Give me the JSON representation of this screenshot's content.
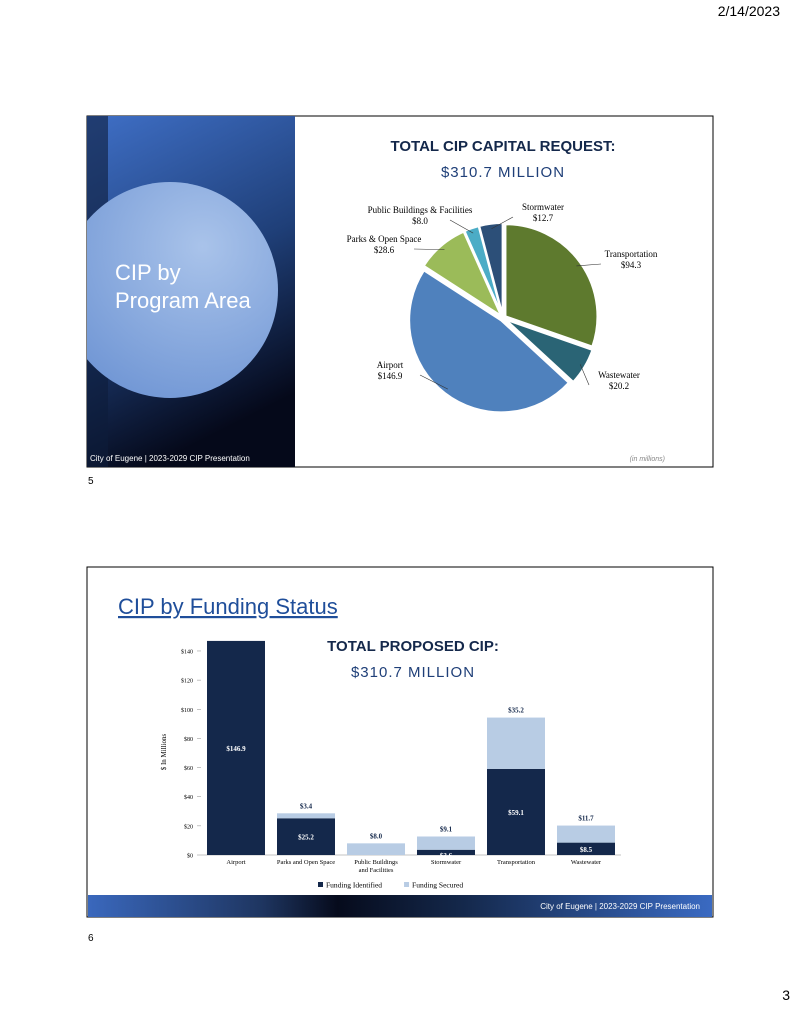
{
  "header": {
    "date": "2/14/2023"
  },
  "footer": {
    "page_number": "3"
  },
  "slides": [
    {
      "number": "5",
      "title_lines": [
        "CIP by",
        "Program Area"
      ],
      "footer": "City of Eugene  |  2023-2029 CIP Presentation"
    },
    {
      "number": "6",
      "title": "CIP by Funding Status",
      "footer": "City of Eugene  |  2023-2029 CIP Presentation"
    }
  ],
  "chart_data": [
    {
      "type": "pie",
      "title": "TOTAL CIP CAPITAL REQUEST:",
      "subtitle": "$310.7 MILLION",
      "note": "(in millions)",
      "categories": [
        "Transportation",
        "Wastewater",
        "Airport",
        "Parks & Open Space",
        "Public Buildings & Facilities",
        "Stormwater"
      ],
      "values": [
        94.3,
        20.2,
        146.9,
        28.6,
        8.0,
        12.7
      ],
      "value_labels": [
        "$94.3",
        "$20.2",
        "$146.9",
        "$28.6",
        "$8.0",
        "$12.7"
      ],
      "colors": [
        "#5e7a2e",
        "#2a6475",
        "#4f81bd",
        "#9bbb59",
        "#4bacc6",
        "#2c4f78"
      ]
    },
    {
      "type": "stacked_bar",
      "title": "TOTAL PROPOSED CIP:",
      "subtitle": "$310.7 MILLION",
      "y_label": "$ In Millions",
      "categories": [
        "Airport",
        "Parks and Open Space",
        "Public Buildings and Facilities",
        "Stormwater",
        "Transportation",
        "Wastewater"
      ],
      "series": [
        {
          "name": "Funding Identified",
          "color": "#14284b",
          "values": [
            146.9,
            25.2,
            null,
            3.6,
            59.1,
            8.5
          ],
          "value_labels": [
            "$146.9",
            "$25.2",
            null,
            "$3.6",
            "$59.1",
            "$8.5"
          ]
        },
        {
          "name": "Funding Secured",
          "color": "#b8cce4",
          "values": [
            null,
            3.4,
            8.0,
            9.1,
            35.2,
            11.7
          ],
          "value_labels": [
            null,
            "$3.4",
            "$8.0",
            "$9.1",
            "$35.2",
            "$11.7"
          ]
        }
      ],
      "ylim": [
        0,
        150
      ],
      "yticks": [
        {
          "value": 0,
          "label": "$0"
        },
        {
          "value": 20,
          "label": "$20"
        },
        {
          "value": 40,
          "label": "$40"
        },
        {
          "value": 60,
          "label": "$60"
        },
        {
          "value": 80,
          "label": "$80"
        },
        {
          "value": 100,
          "label": "$100"
        },
        {
          "value": 120,
          "label": "$120"
        },
        {
          "value": 140,
          "label": "$140"
        }
      ]
    }
  ]
}
